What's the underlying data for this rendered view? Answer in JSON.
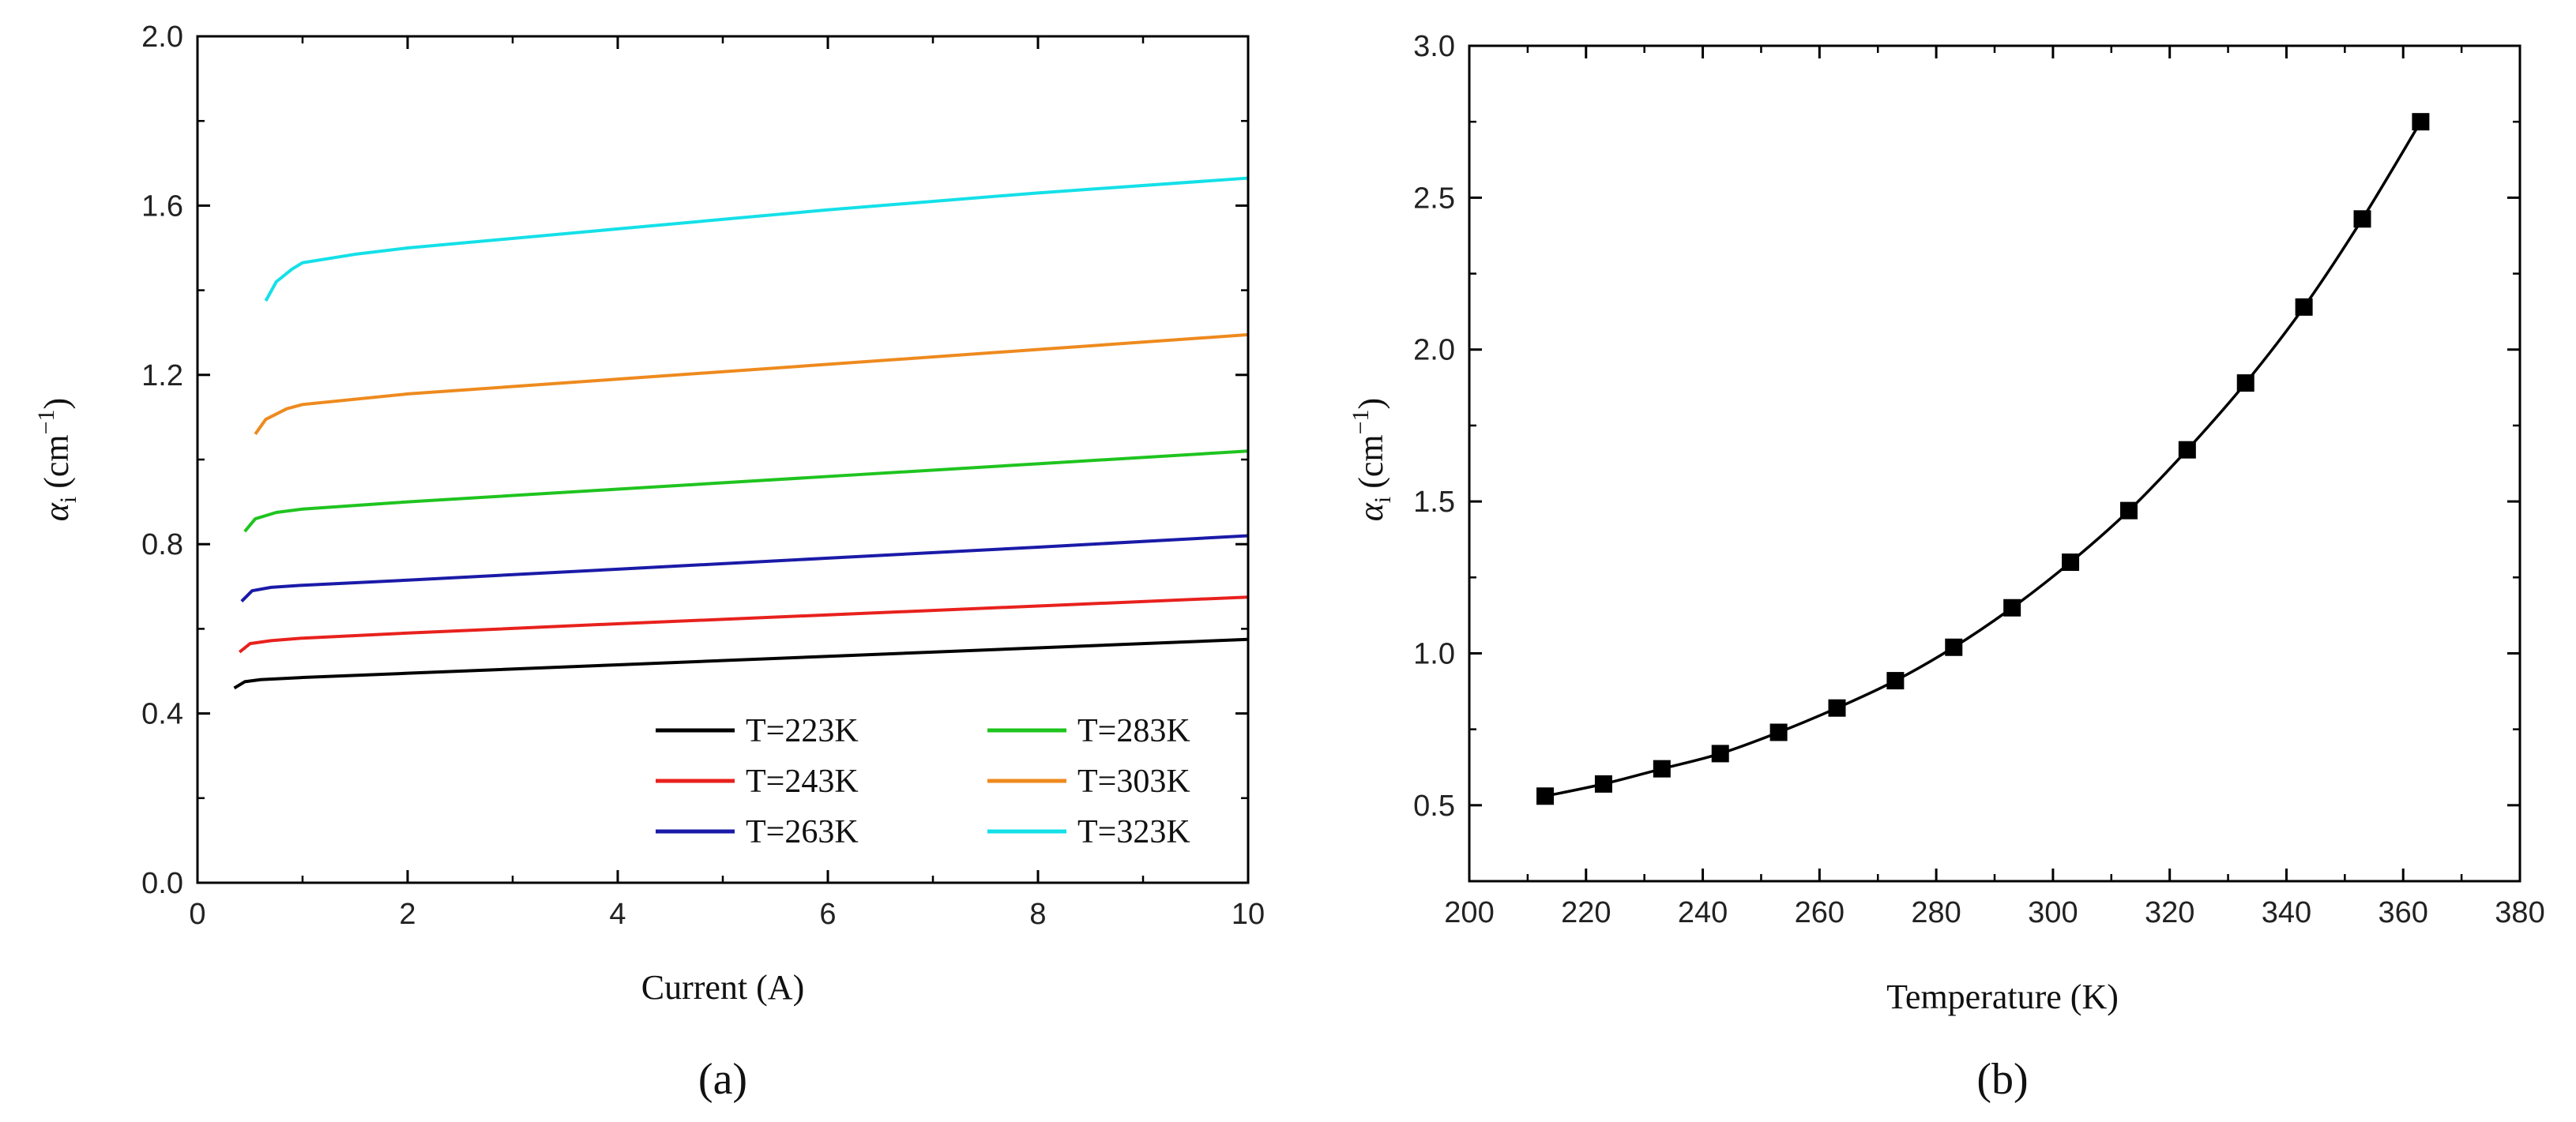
{
  "chart_data": [
    {
      "type": "line",
      "panel_label": "(a)",
      "xlabel": "Current (A)",
      "ylabel": "αi (cm−1)",
      "ylabel_symbol": "α",
      "ylabel_sub": "i",
      "ylabel_unit_open": "(cm",
      "ylabel_unit_exp": "−1",
      "ylabel_unit_close": ")",
      "xlim": [
        0,
        10
      ],
      "ylim": [
        0.0,
        2.0
      ],
      "xticks": [
        0,
        2,
        4,
        6,
        8,
        10
      ],
      "xtick_labels": [
        "0",
        "2",
        "4",
        "6",
        "8",
        "10"
      ],
      "yticks": [
        0.0,
        0.4,
        0.8,
        1.2,
        1.6,
        2.0
      ],
      "ytick_labels": [
        "0.0",
        "0.4",
        "0.8",
        "1.2",
        "1.6",
        "2.0"
      ],
      "grid": false,
      "legend_position": "lower-right",
      "series": [
        {
          "name": "T=223K",
          "color": "#000000",
          "points": [
            [
              0.35,
              0.46
            ],
            [
              0.45,
              0.475
            ],
            [
              0.6,
              0.48
            ],
            [
              1.0,
              0.485
            ],
            [
              2,
              0.495
            ],
            [
              4,
              0.515
            ],
            [
              6,
              0.535
            ],
            [
              8,
              0.555
            ],
            [
              10,
              0.575
            ]
          ]
        },
        {
          "name": "T=243K",
          "color": "#e8211d",
          "points": [
            [
              0.4,
              0.545
            ],
            [
              0.5,
              0.565
            ],
            [
              0.7,
              0.572
            ],
            [
              1.0,
              0.578
            ],
            [
              2,
              0.59
            ],
            [
              4,
              0.612
            ],
            [
              6,
              0.633
            ],
            [
              8,
              0.654
            ],
            [
              10,
              0.675
            ]
          ]
        },
        {
          "name": "T=263K",
          "color": "#1a1aa8",
          "points": [
            [
              0.42,
              0.665
            ],
            [
              0.52,
              0.69
            ],
            [
              0.7,
              0.698
            ],
            [
              1.0,
              0.703
            ],
            [
              2,
              0.715
            ],
            [
              4,
              0.741
            ],
            [
              6,
              0.767
            ],
            [
              8,
              0.793
            ],
            [
              10,
              0.82
            ]
          ]
        },
        {
          "name": "T=283K",
          "color": "#1fc41f",
          "points": [
            [
              0.45,
              0.83
            ],
            [
              0.55,
              0.86
            ],
            [
              0.75,
              0.875
            ],
            [
              1.0,
              0.883
            ],
            [
              2,
              0.9
            ],
            [
              4,
              0.93
            ],
            [
              6,
              0.96
            ],
            [
              8,
              0.99
            ],
            [
              10,
              1.02
            ]
          ]
        },
        {
          "name": "T=303K",
          "color": "#ee8a1e",
          "points": [
            [
              0.55,
              1.06
            ],
            [
              0.65,
              1.095
            ],
            [
              0.85,
              1.12
            ],
            [
              1.0,
              1.13
            ],
            [
              2,
              1.155
            ],
            [
              4,
              1.19
            ],
            [
              6,
              1.225
            ],
            [
              8,
              1.26
            ],
            [
              10,
              1.295
            ]
          ]
        },
        {
          "name": "T=323K",
          "color": "#14e0e8",
          "points": [
            [
              0.65,
              1.375
            ],
            [
              0.75,
              1.42
            ],
            [
              0.9,
              1.45
            ],
            [
              1.0,
              1.465
            ],
            [
              1.5,
              1.485
            ],
            [
              2,
              1.5
            ],
            [
              4,
              1.545
            ],
            [
              6,
              1.59
            ],
            [
              8,
              1.63
            ],
            [
              10,
              1.665
            ]
          ]
        }
      ]
    },
    {
      "type": "line",
      "panel_label": "(b)",
      "xlabel": "Temperature (K)",
      "ylabel": "αi (cm−1)",
      "ylabel_symbol": "α",
      "ylabel_sub": "i",
      "ylabel_unit_open": "(cm",
      "ylabel_unit_exp": "−1",
      "ylabel_unit_close": ")",
      "xlim": [
        200,
        380
      ],
      "ylim": [
        0.25,
        3.0
      ],
      "xticks": [
        200,
        220,
        240,
        260,
        280,
        300,
        320,
        340,
        360,
        380
      ],
      "xtick_labels": [
        "200",
        "220",
        "240",
        "260",
        "280",
        "300",
        "320",
        "340",
        "360",
        "380"
      ],
      "yticks": [
        0.5,
        1.0,
        1.5,
        2.0,
        2.5,
        3.0
      ],
      "ytick_labels": [
        "0.5",
        "1.0",
        "1.5",
        "2.0",
        "2.5",
        "3.0"
      ],
      "grid": false,
      "marker": "square",
      "series": [
        {
          "name": "αi",
          "color": "#000000",
          "x": [
            213,
            223,
            233,
            243,
            253,
            263,
            273,
            283,
            293,
            303,
            313,
            323,
            333,
            343,
            353,
            363
          ],
          "y": [
            0.53,
            0.57,
            0.62,
            0.67,
            0.74,
            0.82,
            0.91,
            1.02,
            1.15,
            1.3,
            1.47,
            1.67,
            1.89,
            2.14,
            2.43,
            2.75
          ]
        }
      ]
    }
  ]
}
